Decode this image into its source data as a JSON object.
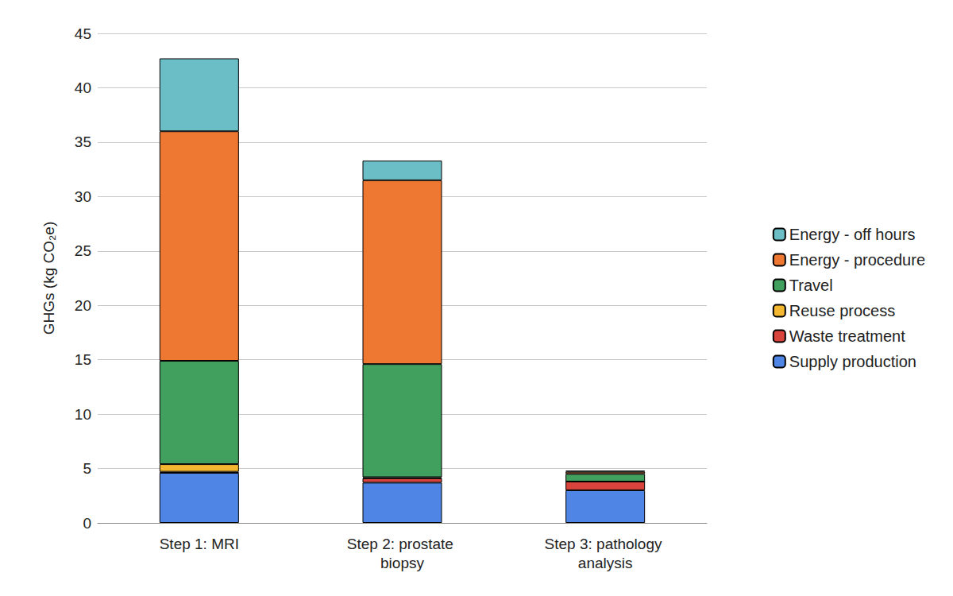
{
  "chart_data": {
    "type": "bar",
    "stacked": true,
    "grid": true,
    "legend": "right",
    "y_label": "GHGs (kg CO₂e)",
    "categories": [
      "Step 1: MRI",
      "Step 2: prostate biopsy",
      "Step 3: pathology analysis"
    ],
    "ylim": [
      0,
      45
    ],
    "yticks": [
      0,
      5,
      10,
      15,
      20,
      25,
      30,
      35,
      40,
      45
    ],
    "series": [
      {
        "name": "Supply production",
        "color": "#4f86e6",
        "values": [
          4.6,
          3.7,
          3.0
        ]
      },
      {
        "name": "Waste treatment",
        "color": "#d8443b",
        "values": [
          0.1,
          0.4,
          0.8
        ]
      },
      {
        "name": "Reuse process",
        "color": "#f3b730",
        "values": [
          0.7,
          0.1,
          0.0
        ]
      },
      {
        "name": "Travel",
        "color": "#42a05e",
        "values": [
          9.5,
          10.4,
          0.7
        ]
      },
      {
        "name": "Energy - procedure",
        "color": "#ee7732",
        "values": [
          21.1,
          16.9,
          0.2
        ]
      },
      {
        "name": "Energy - off hours",
        "color": "#6bbec5",
        "values": [
          6.7,
          1.8,
          0.1
        ]
      }
    ]
  }
}
